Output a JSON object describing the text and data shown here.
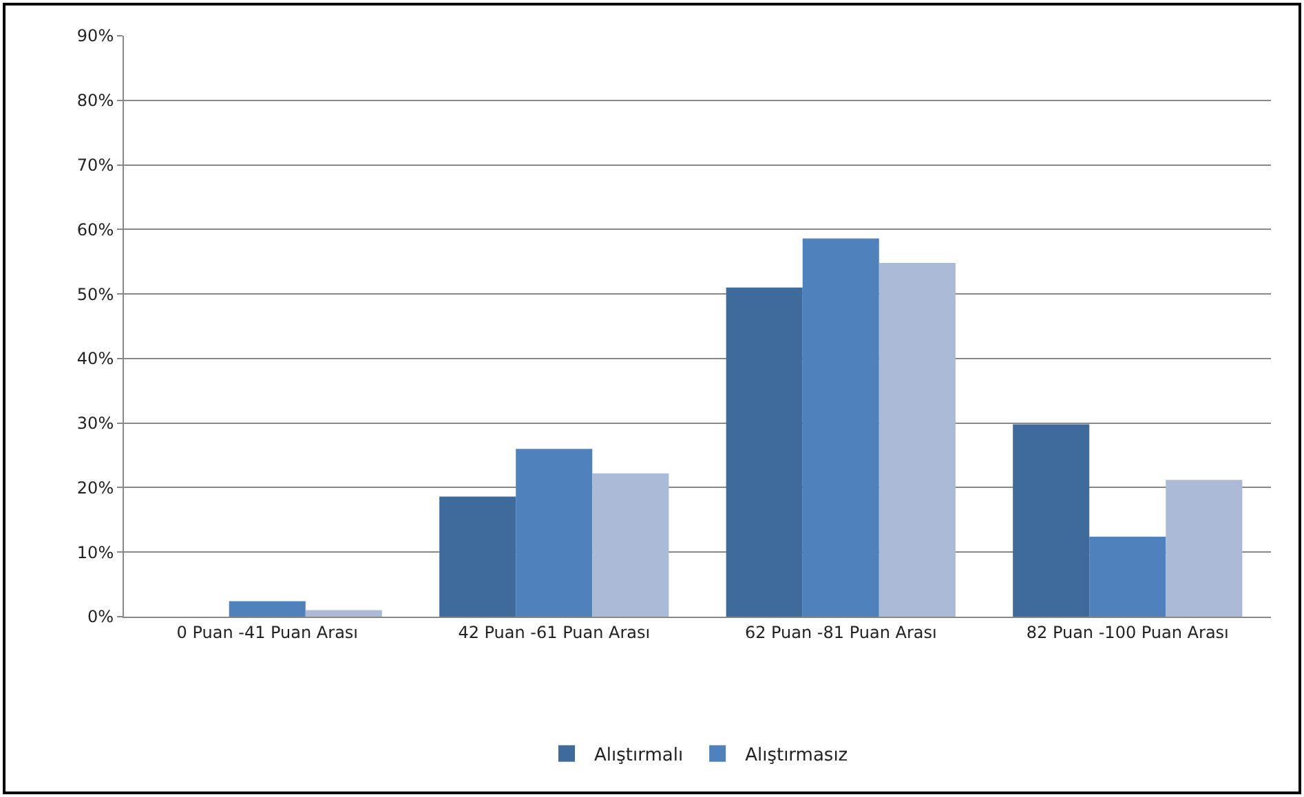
{
  "chart_data": {
    "type": "bar",
    "categories": [
      "0 Puan -41 Puan Arası",
      "42 Puan -61 Puan Arası",
      "62 Puan -81 Puan Arası",
      "82 Puan -100 Puan Arası"
    ],
    "series": [
      {
        "name": "Alıştırmalı",
        "color": "#3f6a9c",
        "values": [
          0,
          18.6,
          51,
          29.8
        ]
      },
      {
        "name": "Alıştırmasız",
        "color": "#4f81bd",
        "values": [
          2.4,
          26,
          58.6,
          12.4
        ]
      },
      {
        "color": "#aabad7",
        "values": [
          1,
          22.2,
          54.8,
          21.2
        ]
      }
    ],
    "ylim": [
      0,
      90
    ],
    "yticks": [
      {
        "value": 0,
        "label": "0%"
      },
      {
        "value": 10,
        "label": "10%"
      },
      {
        "value": 20,
        "label": "20%"
      },
      {
        "value": 30,
        "label": "30%"
      },
      {
        "value": 40,
        "label": "40%"
      },
      {
        "value": 50,
        "label": "50%"
      },
      {
        "value": 60,
        "label": "60%"
      },
      {
        "value": 70,
        "label": "70%"
      },
      {
        "value": 80,
        "label": "80%"
      },
      {
        "value": 90,
        "label": "90%"
      }
    ],
    "grid": "y",
    "legend": "bottom"
  }
}
